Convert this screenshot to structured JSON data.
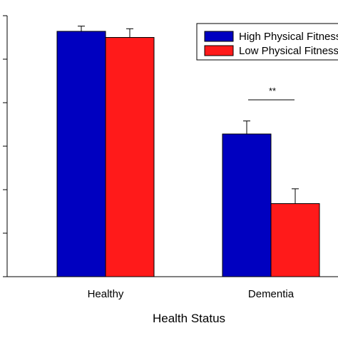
{
  "chart_data": {
    "type": "bar",
    "title": "",
    "xlabel": "Health Status",
    "ylabel": "",
    "categories": [
      "Healthy",
      "Dementia"
    ],
    "series": [
      {
        "name": "High Physical Fitness",
        "color": "#0000c0",
        "values": [
          28.2,
          16.4
        ],
        "error": [
          0.6,
          1.5
        ]
      },
      {
        "name": "Low Physical Fitness",
        "color": "#ff1a1a",
        "values": [
          27.5,
          8.4
        ],
        "error": [
          1.0,
          1.7
        ]
      }
    ],
    "ylim": [
      0,
      30
    ],
    "yticks": [
      0,
      5,
      10,
      15,
      20,
      25,
      30
    ],
    "grid": false,
    "legend_position": "top-right",
    "annotations": [
      {
        "text": "**",
        "between": "Dementia"
      }
    ]
  }
}
